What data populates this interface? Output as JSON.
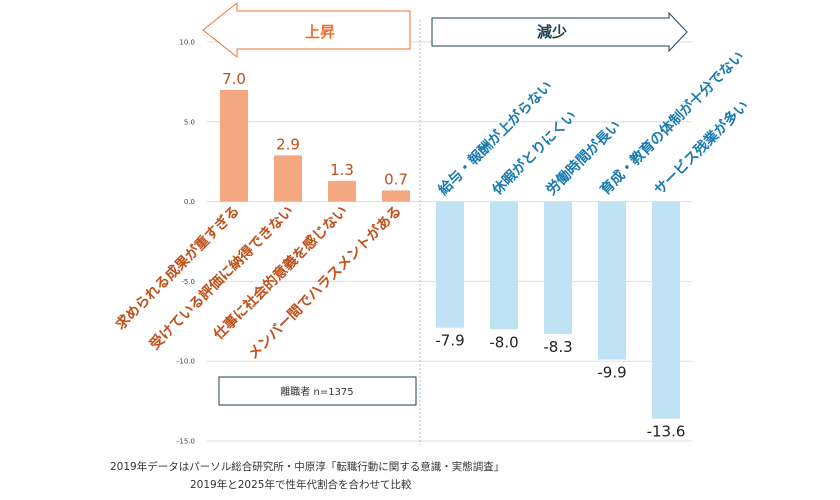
{
  "chart_data": {
    "type": "bar",
    "ylim": [
      -15,
      10
    ],
    "yticks": [
      10,
      5,
      0,
      -5,
      -10,
      -15
    ],
    "ytick_labels": [
      "10.0",
      "5.0",
      "0.0",
      "-5.0",
      "-10.0",
      "-15.0"
    ],
    "grid": true,
    "groups": [
      {
        "name": "上昇",
        "color": "#f4a882",
        "label_color": "#c0501a",
        "arrow_color": "#f07030",
        "categories": [
          "求められる成果が重すぎる",
          "受けている評価に納得できない",
          "仕事に社会的意義を感じない",
          "メンバー間でハラスメントがある"
        ],
        "values": [
          7.0,
          2.9,
          1.3,
          0.7
        ],
        "value_labels": [
          "7.0",
          "2.9",
          "1.3",
          "0.7"
        ]
      },
      {
        "name": "減少",
        "color": "#bfe3f5",
        "label_color": "#1a7bb0",
        "arrow_color": "#1f3f4f",
        "categories": [
          "給与・報酬が上がらない",
          "休暇がとりにくい",
          "労働時間が長い",
          "育成・教育の体制が十分でない",
          "サービス残業が多い"
        ],
        "values": [
          -7.9,
          -8.0,
          -8.3,
          -9.9,
          -13.6
        ],
        "value_labels": [
          "-7.9",
          "-8.0",
          "-8.3",
          "-9.9",
          "-13.6"
        ]
      }
    ],
    "legend_box": "離職者  n=1375"
  },
  "notes": [
    "2019年データはパーソル総合研究所・中原淳「転職行動に関する意識・実態調査」",
    "2019年と2025年で性年代割合を合わせて比較"
  ]
}
